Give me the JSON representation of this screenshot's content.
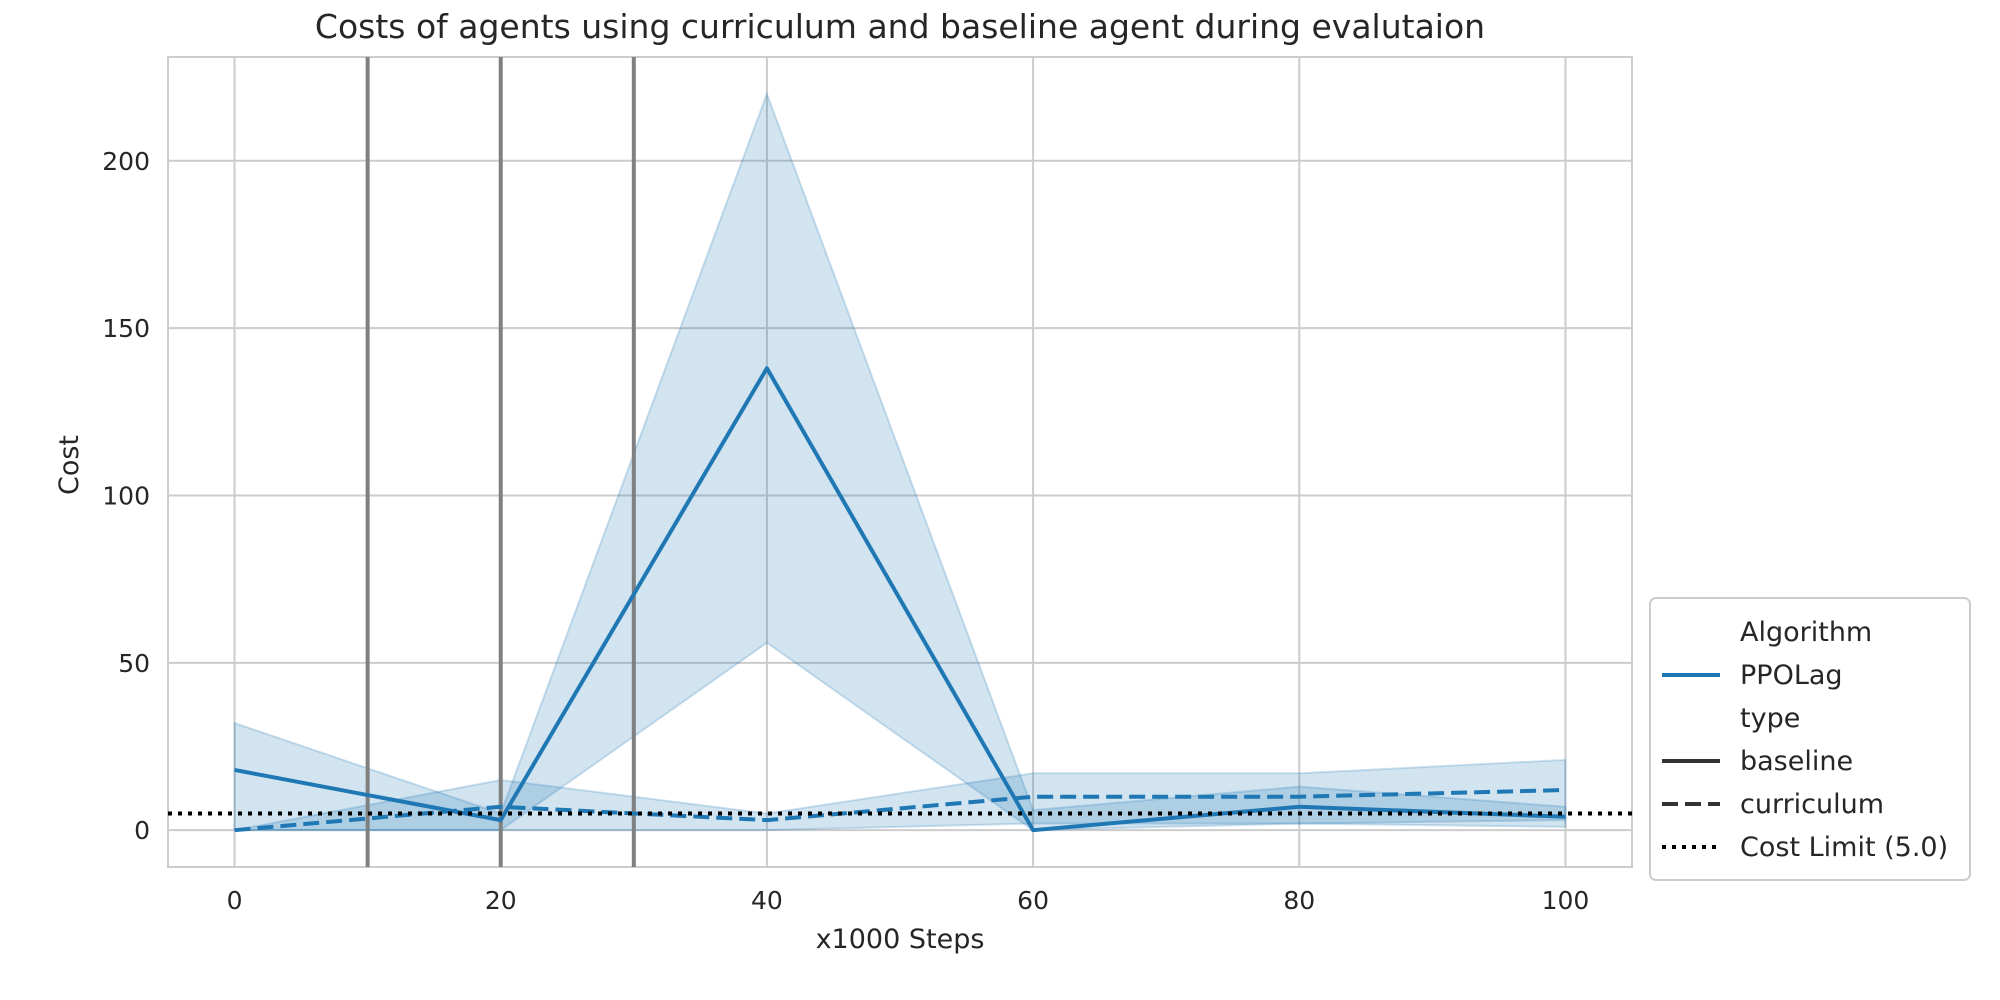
{
  "chart_data": {
    "type": "line",
    "title": "Costs of agents using curriculum and baseline agent during evalutaion",
    "xlabel": "x1000 Steps",
    "ylabel": "Cost",
    "xlim": [
      -5,
      105
    ],
    "ylim": [
      -11,
      231
    ],
    "xticks": [
      0,
      20,
      40,
      60,
      80,
      100
    ],
    "yticks": [
      0,
      50,
      100,
      150,
      200
    ],
    "xtick_labels": [
      "0",
      "20",
      "40",
      "60",
      "80",
      "100"
    ],
    "ytick_labels": [
      "0",
      "50",
      "100",
      "150",
      "200"
    ],
    "grid": true,
    "colors": {
      "series": "#1f77b4",
      "vlines": "#808080",
      "limit": "#000000",
      "grid": "#cccccc",
      "text": "#262626"
    },
    "vlines": [
      10,
      20,
      30
    ],
    "cost_limit": 5.0,
    "x": [
      0,
      20,
      40,
      60,
      80,
      100
    ],
    "series": [
      {
        "algorithm": "PPOLag",
        "type": "baseline",
        "style": "solid",
        "values": [
          18,
          3,
          138,
          0,
          7,
          4
        ],
        "ci_lower": [
          0,
          0,
          56,
          0,
          2,
          1
        ],
        "ci_upper": [
          32,
          5,
          220,
          6,
          13,
          7
        ]
      },
      {
        "algorithm": "PPOLag",
        "type": "curriculum",
        "style": "dashed",
        "values": [
          0,
          7,
          3,
          10,
          10,
          12
        ],
        "ci_lower": [
          0,
          0,
          0,
          2,
          2,
          3
        ],
        "ci_upper": [
          0,
          15,
          5,
          17,
          17,
          21
        ]
      }
    ],
    "legend": {
      "placement": "lower-right-outside",
      "entries": [
        {
          "label": "Algorithm",
          "kind": "header"
        },
        {
          "label": "PPOLag",
          "kind": "line",
          "style": "solid",
          "color": "#1f77b4"
        },
        {
          "label": "type",
          "kind": "header"
        },
        {
          "label": "baseline",
          "kind": "line",
          "style": "solid",
          "color": "#333333"
        },
        {
          "label": "curriculum",
          "kind": "line",
          "style": "dashed",
          "color": "#333333"
        },
        {
          "label": "Cost Limit (5.0)",
          "kind": "line",
          "style": "dotted",
          "color": "#000000"
        }
      ]
    }
  }
}
